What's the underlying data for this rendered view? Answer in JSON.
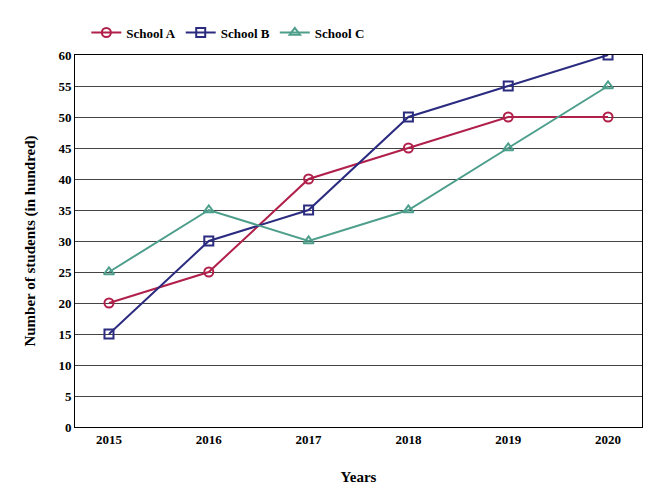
{
  "chart_data": {
    "type": "line",
    "x_label": "Years",
    "y_label": "Number of students (in hundred)",
    "categories": [
      "2015",
      "2016",
      "2017",
      "2018",
      "2019",
      "2020"
    ],
    "series": [
      {
        "name": "School A",
        "color": "#b0204a",
        "marker": "circle-open",
        "values": [
          20,
          25,
          40,
          45,
          50,
          50
        ]
      },
      {
        "name": "School B",
        "color": "#2b2b80",
        "marker": "square-open",
        "values": [
          15,
          30,
          35,
          50,
          55,
          60
        ]
      },
      {
        "name": "School C",
        "color": "#4e9e8c",
        "marker": "triangle-up-open",
        "values": [
          25,
          35,
          30,
          35,
          45,
          55
        ]
      }
    ],
    "ylim": [
      0,
      60
    ],
    "yticks": [
      0,
      5,
      10,
      15,
      20,
      25,
      30,
      35,
      40,
      45,
      50,
      55,
      60
    ],
    "grid": true,
    "legend": "top left"
  }
}
